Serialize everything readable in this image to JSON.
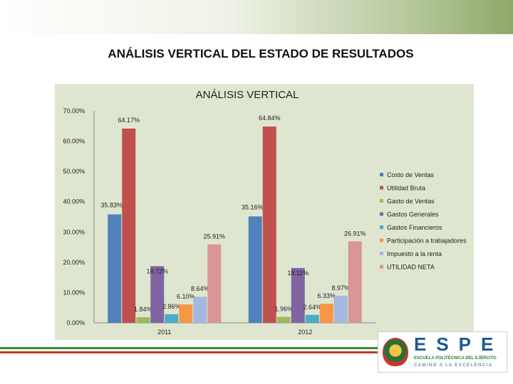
{
  "slide": {
    "title": "ANÁLISIS VERTICAL  DEL ESTADO DE RESULTADOS"
  },
  "logo": {
    "brand": "ESPE",
    "name": "ESCUELA POLITÉCNICA DEL EJÉRCITO",
    "motto": "CAMINO A LA EXCELENCIA"
  },
  "colors": {
    "chart_background": "#dfe6cf",
    "stripe_green": "#3b8a2a",
    "stripe_red": "#c0392b"
  },
  "chart_data": {
    "type": "bar",
    "title": "ANÁLISIS VERTICAL",
    "categories": [
      "2011",
      "2012"
    ],
    "ylim": [
      0,
      70
    ],
    "yticks": [
      "0.00%",
      "10.00%",
      "20.00%",
      "30.00%",
      "40.00%",
      "50.00%",
      "60.00%",
      "70.00%"
    ],
    "grid": false,
    "legend_position": "right",
    "series": [
      {
        "name": "Costo de Ventas",
        "color": "#4f81bd",
        "values": [
          35.83,
          35.16
        ],
        "labels": [
          "35.83%",
          "35.16%"
        ]
      },
      {
        "name": "Utilidad Bruta",
        "color": "#c0504d",
        "values": [
          64.17,
          64.84
        ],
        "labels": [
          "64.17%",
          "64.84%"
        ]
      },
      {
        "name": "Gasto de Ventas",
        "color": "#9bbb59",
        "values": [
          1.84,
          1.96
        ],
        "labels": [
          "1.84%",
          "1.96%"
        ]
      },
      {
        "name": "Gastos Generales",
        "color": "#8064a2",
        "values": [
          18.72,
          18.11
        ],
        "labels": [
          "18.72%",
          "18.11%"
        ]
      },
      {
        "name": "Gastos Financieros",
        "color": "#4bacc6",
        "values": [
          2.86,
          2.64
        ],
        "labels": [
          "2.86%",
          "2.64%"
        ]
      },
      {
        "name": "Participación a trabajadores",
        "color": "#f79646",
        "values": [
          6.1,
          6.33
        ],
        "labels": [
          "6.10%",
          "6.33%"
        ]
      },
      {
        "name": "Impuesto a la renta",
        "color": "#a5b8e0",
        "values": [
          8.64,
          8.97
        ],
        "labels": [
          "8.64%",
          "8.97%"
        ]
      },
      {
        "name": "UTILIDAD NETA",
        "color": "#d99694",
        "values": [
          25.91,
          26.91
        ],
        "labels": [
          "25.91%",
          "26.91%"
        ]
      }
    ]
  }
}
